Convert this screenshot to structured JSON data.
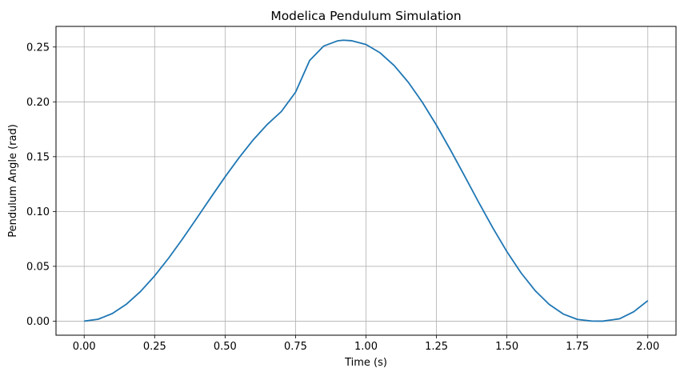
{
  "chart_data": {
    "type": "line",
    "title": "Modelica Pendulum Simulation",
    "xlabel": "Time (s)",
    "ylabel": "Pendulum Angle (rad)",
    "xlim": [
      -0.1,
      2.1
    ],
    "ylim": [
      -0.0128,
      0.2688
    ],
    "xticks": [
      "0.00",
      "0.25",
      "0.50",
      "0.75",
      "1.00",
      "1.25",
      "1.50",
      "1.75",
      "2.00"
    ],
    "yticks": [
      "0.00",
      "0.05",
      "0.10",
      "0.15",
      "0.20",
      "0.25"
    ],
    "grid": true,
    "legend": "none",
    "series": [
      {
        "color": "#1f77b4",
        "x": [
          0.0,
          0.05,
          0.1,
          0.15,
          0.2,
          0.25,
          0.3,
          0.35,
          0.4,
          0.45,
          0.5,
          0.55,
          0.6,
          0.65,
          0.7,
          0.75,
          0.8,
          0.85,
          0.9,
          0.92,
          0.95,
          1.0,
          1.05,
          1.1,
          1.15,
          1.2,
          1.25,
          1.3,
          1.35,
          1.4,
          1.45,
          1.5,
          1.55,
          1.6,
          1.65,
          1.7,
          1.75,
          1.8,
          1.84,
          1.9,
          1.95,
          2.0
        ],
        "y": [
          0.0,
          0.0018,
          0.007,
          0.0155,
          0.0271,
          0.0413,
          0.0576,
          0.0754,
          0.0941,
          0.113,
          0.1316,
          0.1492,
          0.1654,
          0.1795,
          0.1913,
          0.2088,
          0.2377,
          0.2509,
          0.2557,
          0.2562,
          0.2557,
          0.2523,
          0.2447,
          0.2331,
          0.2179,
          0.1996,
          0.1787,
          0.156,
          0.1323,
          0.1083,
          0.0851,
          0.0634,
          0.0441,
          0.0279,
          0.0153,
          0.0065,
          0.0016,
          0.0001,
          0.0,
          0.0022,
          0.0086,
          0.0187
        ]
      }
    ]
  }
}
